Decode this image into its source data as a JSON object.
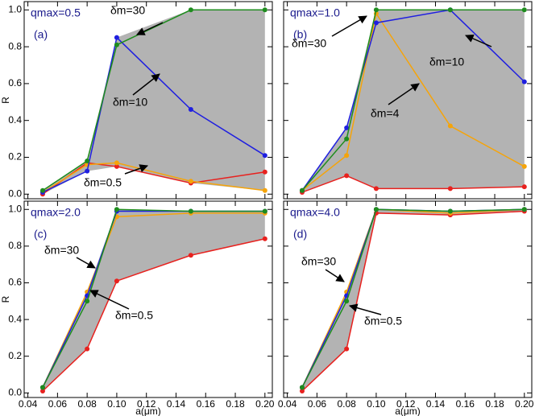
{
  "chart_data": [
    {
      "type": "line",
      "title": "qmax=0.5",
      "label": "(a)",
      "shade": "#b3b3b3",
      "x": [
        0.05,
        0.08,
        0.1,
        0.15,
        0.2
      ],
      "series": [
        {
          "color": "#e8211e",
          "values": [
            0.0,
            0.17,
            0.15,
            0.06,
            0.12
          ]
        },
        {
          "color": "#f5a40a",
          "values": [
            0.01,
            0.16,
            0.17,
            0.07,
            0.02
          ]
        },
        {
          "color": "#1f1fe0",
          "values": [
            0.01,
            0.125,
            0.85,
            0.46,
            0.21
          ]
        },
        {
          "color": "#1e8c1e",
          "values": [
            0.02,
            0.18,
            0.81,
            1.0,
            1.0
          ]
        }
      ],
      "xlim": [
        0.0375,
        0.205
      ],
      "ylim": [
        -0.025,
        1.045
      ],
      "xticks": [
        0.04,
        0.06,
        0.08,
        0.1,
        0.12,
        0.14,
        0.16,
        0.18,
        0.2
      ],
      "yticks": [
        {
          "value": 0,
          "label": "0.0"
        },
        0.2,
        0.4,
        0.6,
        0.8,
        {
          "value": 1,
          "label": "1.0"
        }
      ],
      "ylabel": "R",
      "annotations": [
        {
          "text": "δm=30",
          "color": "#000"
        },
        {
          "text": "δm=10",
          "color": "#fff"
        },
        {
          "text": "δm=0.5",
          "color": "#000"
        }
      ]
    },
    {
      "type": "line",
      "title": "qmax=1.0",
      "label": "(b)",
      "shade": "#b3b3b3",
      "x": [
        0.05,
        0.08,
        0.1,
        0.15,
        0.2
      ],
      "series": [
        {
          "color": "#e8211e",
          "values": [
            0.01,
            0.1,
            0.03,
            0.03,
            0.04
          ]
        },
        {
          "color": "#f5a40a",
          "values": [
            0.02,
            0.21,
            0.98,
            0.37,
            0.15
          ]
        },
        {
          "color": "#1f1fe0",
          "values": [
            0.02,
            0.36,
            0.93,
            1.0,
            0.61
          ]
        },
        {
          "color": "#1e8c1e",
          "values": [
            0.02,
            0.3,
            1.0,
            1.0,
            1.0
          ]
        }
      ],
      "xlim": [
        0.0375,
        0.205
      ],
      "ylim": [
        -0.025,
        1.045
      ],
      "xticks": [
        0.04,
        0.06,
        0.08,
        0.1,
        0.12,
        0.14,
        0.16,
        0.18,
        0.2
      ],
      "yticks": [
        0,
        0.2,
        0.4,
        0.6,
        0.8,
        1
      ],
      "annotations": [
        {
          "text": "δm=30",
          "color": "#000"
        },
        {
          "text": "δm=10",
          "color": "#fff"
        },
        {
          "text": "δm=4",
          "color": "#fff"
        }
      ]
    },
    {
      "type": "line",
      "title": "qmax=2.0",
      "label": "(c)",
      "shade": "#b3b3b3",
      "x": [
        0.05,
        0.08,
        0.1,
        0.15,
        0.2
      ],
      "series": [
        {
          "color": "#e8211e",
          "values": [
            0.01,
            0.24,
            0.61,
            0.75,
            0.84
          ]
        },
        {
          "color": "#f5a40a",
          "values": [
            0.03,
            0.55,
            0.96,
            0.98,
            0.98
          ]
        },
        {
          "color": "#1f1fe0",
          "values": [
            0.03,
            0.53,
            0.99,
            0.99,
            0.99
          ]
        },
        {
          "color": "#1e8c1e",
          "values": [
            0.03,
            0.5,
            1.0,
            0.99,
            0.99
          ]
        }
      ],
      "xlim": [
        0.0375,
        0.205
      ],
      "ylim": [
        -0.025,
        1.045
      ],
      "xticks": [
        0.04,
        0.06,
        0.08,
        {
          "value": 0.1,
          "label": "0.10"
        },
        0.12,
        0.14,
        0.16,
        0.18,
        {
          "value": 0.2,
          "label": "0.20"
        }
      ],
      "yticks": [
        {
          "value": 0,
          "label": "0.0"
        },
        0.2,
        0.4,
        0.6,
        0.8,
        {
          "value": 1,
          "label": "1.0"
        }
      ],
      "xlabel": "a(μm)",
      "ylabel": "R",
      "annotations": [
        {
          "text": "δm=30",
          "color": "#000"
        },
        {
          "text": "δm=0.5",
          "color": "#000"
        }
      ]
    },
    {
      "type": "line",
      "title": "qmax=4.0",
      "label": "(d)",
      "shade": "#b3b3b3",
      "x": [
        0.05,
        0.08,
        0.1,
        0.15,
        0.2
      ],
      "series": [
        {
          "color": "#e8211e",
          "values": [
            0.01,
            0.24,
            0.98,
            0.97,
            0.99
          ]
        },
        {
          "color": "#f5a40a",
          "values": [
            0.03,
            0.55,
            1.0,
            0.98,
            1.0
          ]
        },
        {
          "color": "#1f1fe0",
          "values": [
            0.03,
            0.53,
            1.0,
            0.99,
            1.0
          ]
        },
        {
          "color": "#1e8c1e",
          "values": [
            0.03,
            0.5,
            1.0,
            0.99,
            1.0
          ]
        }
      ],
      "xlim": [
        0.0375,
        0.205
      ],
      "ylim": [
        -0.025,
        1.045
      ],
      "xticks": [
        0.04,
        0.06,
        0.08,
        {
          "value": 0.1,
          "label": "0.10"
        },
        0.12,
        0.14,
        0.16,
        0.18,
        {
          "value": 0.2,
          "label": "0.20"
        }
      ],
      "yticks": [
        0,
        0.2,
        0.4,
        0.6,
        0.8,
        1
      ],
      "xlabel": "a(μm)",
      "annotations": [
        {
          "text": "δm=30",
          "color": "#000"
        },
        {
          "text": "δm=0.5",
          "color": "#000"
        }
      ]
    }
  ]
}
